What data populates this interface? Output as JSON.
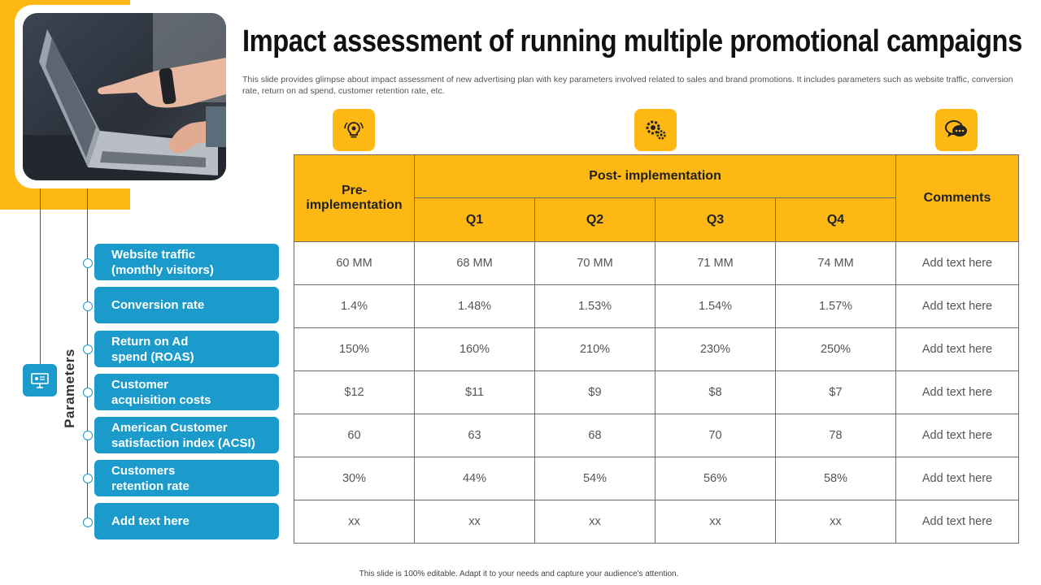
{
  "title": "Impact assessment of running multiple promotional campaigns",
  "subtitle": "This slide provides glimpse about impact assessment of new advertising plan with key parameters involved related to sales and brand promotions. It includes parameters such as website traffic, conversion rate, return on ad spend, customer retention rate, etc.",
  "parameters_label": "Parameters",
  "parameters": [
    "Website traffic (monthly visitors)",
    "Conversion rate",
    "Return on Ad spend (ROAS)",
    "Customer acquisition costs",
    "American Customer satisfaction index (ACSI)",
    "Customers retention rate",
    "Add text here"
  ],
  "icons": [
    "bulb-gear-icon",
    "gears-icon",
    "chat-bubbles-icon",
    "presentation-icon"
  ],
  "table": {
    "header_pre": "Pre- implementation",
    "header_post": "Post- implementation",
    "header_comments": "Comments",
    "quarters": [
      "Q1",
      "Q2",
      "Q3",
      "Q4"
    ],
    "rows": [
      [
        "60 MM",
        "68 MM",
        "70 MM",
        "71 MM",
        "74 MM",
        "Add text here"
      ],
      [
        "1.4%",
        "1.48%",
        "1.53%",
        "1.54%",
        "1.57%",
        "Add text here"
      ],
      [
        "150%",
        "160%",
        "210%",
        "230%",
        "250%",
        "Add text here"
      ],
      [
        "$12",
        "$11",
        "$9",
        "$8",
        "$7",
        "Add text here"
      ],
      [
        "60",
        "63",
        "68",
        "70",
        "78",
        "Add text here"
      ],
      [
        "30%",
        "44%",
        "54%",
        "56%",
        "58%",
        "Add text here"
      ],
      [
        "xx",
        "xx",
        "xx",
        "xx",
        "xx",
        "Add text here"
      ]
    ]
  },
  "footer": "This slide is 100% editable. Adapt it to your needs and capture your audience's attention.",
  "colors": {
    "accent_yellow": "#FDB813",
    "accent_blue": "#1B9BCB"
  }
}
